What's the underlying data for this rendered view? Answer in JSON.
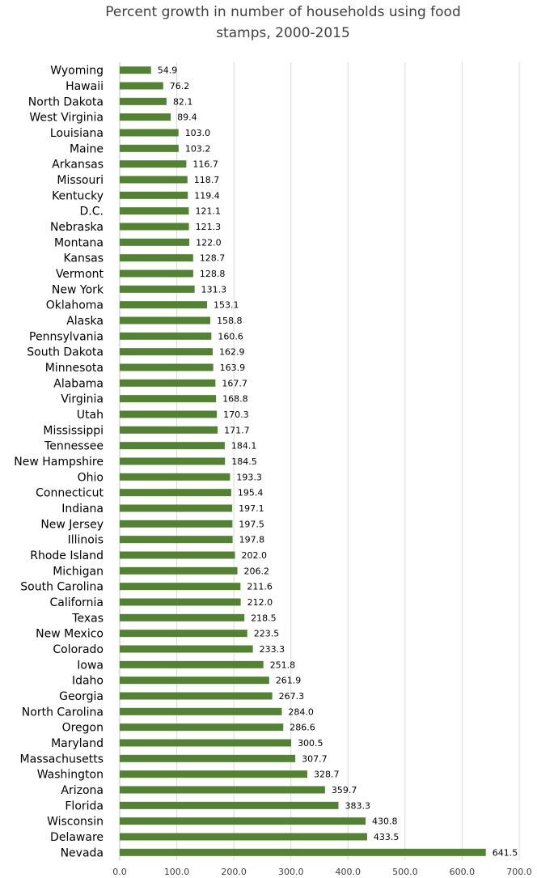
{
  "chart_data": {
    "type": "bar",
    "orientation": "horizontal",
    "title": "Percent growth in number of households using food stamps, 2000-2015",
    "title_lines": [
      "Percent growth in number of households using food",
      "stamps, 2000-2015"
    ],
    "xlabel": "",
    "ylabel": "",
    "xlim": [
      0,
      700
    ],
    "xticks": [
      0,
      100,
      200,
      300,
      400,
      500,
      600,
      700
    ],
    "xtick_labels": [
      "0.0",
      "100.0",
      "200.0",
      "300.0",
      "400.0",
      "500.0",
      "600.0",
      "700.0"
    ],
    "grid": "vertical",
    "bar_color": "#548235",
    "gridline_color": "#d9d9d9",
    "categories": [
      "Wyoming",
      "Hawaii",
      "North Dakota",
      "West Virginia",
      "Louisiana",
      "Maine",
      "Arkansas",
      "Missouri",
      "Kentucky",
      "D.C.",
      "Nebraska",
      "Montana",
      "Kansas",
      "Vermont",
      "New York",
      "Oklahoma",
      "Alaska",
      "Pennsylvania",
      "South Dakota",
      "Minnesota",
      "Alabama",
      "Virginia",
      "Utah",
      "Mississippi",
      "Tennessee",
      "New Hampshire",
      "Ohio",
      "Connecticut",
      "Indiana",
      "New Jersey",
      "Illinois",
      "Rhode Island",
      "Michigan",
      "South Carolina",
      "California",
      "Texas",
      "New Mexico",
      "Colorado",
      "Iowa",
      "Idaho",
      "Georgia",
      "North Carolina",
      "Oregon",
      "Maryland",
      "Massachusetts",
      "Washington",
      "Arizona",
      "Florida",
      "Wisconsin",
      "Delaware",
      "Nevada"
    ],
    "values": [
      54.9,
      76.2,
      82.1,
      89.4,
      103.0,
      103.2,
      116.7,
      118.7,
      119.4,
      121.1,
      121.3,
      122.0,
      128.7,
      128.8,
      131.3,
      153.1,
      158.8,
      160.6,
      162.9,
      163.9,
      167.7,
      168.8,
      170.3,
      171.7,
      184.1,
      184.5,
      193.3,
      195.4,
      197.1,
      197.5,
      197.8,
      202.0,
      206.2,
      211.6,
      212.0,
      218.5,
      223.5,
      233.3,
      251.8,
      261.9,
      267.3,
      284.0,
      286.6,
      300.5,
      307.7,
      328.7,
      359.7,
      383.3,
      430.8,
      433.5,
      641.5
    ],
    "value_labels": [
      "54.9",
      "76.2",
      "82.1",
      "89.4",
      "103.0",
      "103.2",
      "116.7",
      "118.7",
      "119.4",
      "121.1",
      "121.3",
      "122.0",
      "128.7",
      "128.8",
      "131.3",
      "153.1",
      "158.8",
      "160.6",
      "162.9",
      "163.9",
      "167.7",
      "168.8",
      "170.3",
      "171.7",
      "184.1",
      "184.5",
      "193.3",
      "195.4",
      "197.1",
      "197.5",
      "197.8",
      "202.0",
      "206.2",
      "211.6",
      "212.0",
      "218.5",
      "223.5",
      "233.3",
      "251.8",
      "261.9",
      "267.3",
      "284.0",
      "286.6",
      "300.5",
      "307.7",
      "328.7",
      "359.7",
      "383.3",
      "430.8",
      "433.5",
      "641.5"
    ]
  }
}
